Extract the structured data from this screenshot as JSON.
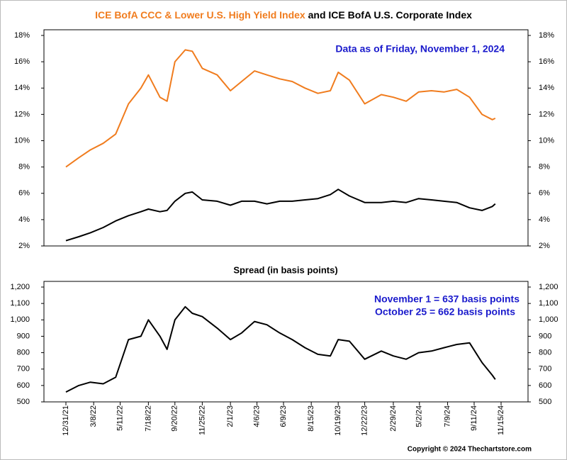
{
  "chart_data": [
    {
      "type": "line",
      "title_joiner": "and",
      "annotation": "Data as of Friday, November 1, 2024",
      "x": [
        "12/31/21",
        "1/31/22",
        "2/28/22",
        "3/31/22",
        "4/30/22",
        "5/31/22",
        "6/30/22",
        "7/18/22",
        "8/15/22",
        "9/1/22",
        "9/20/22",
        "10/15/22",
        "11/1/22",
        "11/25/22",
        "12/31/22",
        "2/1/23",
        "2/28/23",
        "3/31/23",
        "4/30/23",
        "5/31/23",
        "6/30/23",
        "7/31/23",
        "8/31/23",
        "9/30/23",
        "10/19/23",
        "11/15/23",
        "12/22/23",
        "1/31/24",
        "2/29/24",
        "3/31/24",
        "4/30/24",
        "5/31/24",
        "6/30/24",
        "7/31/24",
        "8/31/24",
        "9/30/24",
        "10/25/24",
        "11/1/24"
      ],
      "series": [
        {
          "name": "ICE BofA CCC & Lower U.S. High Yield Index",
          "color": "#f07c1e",
          "values": [
            8.0,
            8.7,
            9.3,
            9.8,
            10.5,
            12.8,
            14.0,
            15.0,
            13.3,
            13.0,
            16.0,
            16.9,
            16.8,
            15.5,
            15.0,
            13.8,
            14.5,
            15.3,
            15.0,
            14.7,
            14.5,
            14.0,
            13.6,
            13.8,
            15.2,
            14.6,
            12.8,
            13.5,
            13.3,
            13.0,
            13.7,
            13.8,
            13.7,
            13.9,
            13.3,
            12.0,
            11.6,
            11.7
          ]
        },
        {
          "name": "ICE BofA U.S. Corporate Index",
          "color": "#000000",
          "values": [
            2.4,
            2.7,
            3.0,
            3.4,
            3.9,
            4.3,
            4.6,
            4.8,
            4.6,
            4.7,
            5.4,
            6.0,
            6.1,
            5.5,
            5.4,
            5.1,
            5.4,
            5.4,
            5.2,
            5.4,
            5.4,
            5.5,
            5.6,
            5.9,
            6.3,
            5.8,
            5.3,
            5.3,
            5.4,
            5.3,
            5.6,
            5.5,
            5.4,
            5.3,
            4.9,
            4.7,
            5.0,
            5.2
          ]
        }
      ],
      "xlim": [
        "11/8/21",
        "1/19/25"
      ],
      "ylim": [
        2,
        18
      ],
      "yticks": [
        {
          "value": 2,
          "label": "2%"
        },
        {
          "value": 4,
          "label": "4%"
        },
        {
          "value": 6,
          "label": "6%"
        },
        {
          "value": 8,
          "label": "8%"
        },
        {
          "value": 10,
          "label": "10%"
        },
        {
          "value": 12,
          "label": "12%"
        },
        {
          "value": 14,
          "label": "14%"
        },
        {
          "value": 16,
          "label": "16%"
        },
        {
          "value": 18,
          "label": "18%"
        }
      ]
    },
    {
      "type": "line",
      "title": "Spread (in basis points)",
      "annotations": [
        "November 1 = 637 basis points",
        "October 25 = 662 basis points"
      ],
      "x": [
        "12/31/21",
        "1/31/22",
        "2/28/22",
        "3/31/22",
        "4/30/22",
        "5/31/22",
        "6/30/22",
        "7/18/22",
        "8/15/22",
        "9/1/22",
        "9/20/22",
        "10/15/22",
        "11/1/22",
        "11/25/22",
        "12/31/22",
        "2/1/23",
        "2/28/23",
        "3/31/23",
        "4/30/23",
        "5/31/23",
        "6/30/23",
        "7/31/23",
        "8/31/23",
        "9/30/23",
        "10/19/23",
        "11/15/23",
        "12/22/23",
        "1/31/24",
        "2/29/24",
        "3/31/24",
        "4/30/24",
        "5/31/24",
        "6/30/24",
        "7/31/24",
        "8/31/24",
        "9/30/24",
        "10/25/24",
        "11/1/24"
      ],
      "series": [
        {
          "name": "Spread",
          "color": "#000000",
          "values": [
            560,
            600,
            620,
            610,
            650,
            880,
            900,
            1000,
            900,
            820,
            1000,
            1080,
            1040,
            1020,
            950,
            880,
            920,
            990,
            970,
            920,
            880,
            830,
            790,
            780,
            880,
            870,
            760,
            810,
            780,
            760,
            800,
            810,
            830,
            850,
            860,
            740,
            662,
            637
          ]
        }
      ],
      "xlim": [
        "11/8/21",
        "1/19/25"
      ],
      "xticks": [
        "12/31/21",
        "3/8/22",
        "5/11/22",
        "7/18/22",
        "9/20/22",
        "11/25/22",
        "2/1/23",
        "4/6/23",
        "6/9/23",
        "8/15/23",
        "10/19/23",
        "12/22/23",
        "2/29/24",
        "5/2/24",
        "7/9/24",
        "9/11/24",
        "11/15/24"
      ],
      "ylim": [
        500,
        1200
      ],
      "yticks": [
        500,
        600,
        700,
        800,
        900,
        {
          "value": 1000,
          "label": "1,000"
        },
        {
          "value": 1100,
          "label": "1,100"
        },
        {
          "value": 1200,
          "label": "1,200"
        }
      ]
    }
  ],
  "copyright": "Copyright © 2024 Thechartstore.com"
}
